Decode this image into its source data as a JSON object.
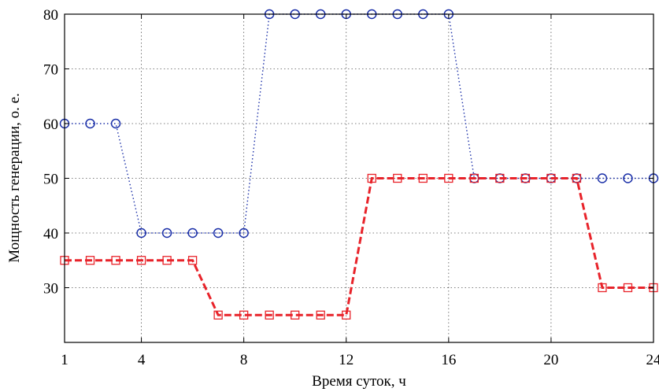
{
  "chart_data": {
    "type": "line",
    "xlabel": "Время суток, ч",
    "ylabel": "Мощность генерации, о. е.",
    "xlim": [
      1,
      24
    ],
    "ylim": [
      20,
      80
    ],
    "xticks": [
      1,
      4,
      8,
      12,
      16,
      20,
      24
    ],
    "yticks": [
      30,
      40,
      50,
      60,
      70,
      80
    ],
    "grid": true,
    "x": [
      1,
      2,
      3,
      4,
      5,
      6,
      7,
      8,
      9,
      10,
      11,
      12,
      13,
      14,
      15,
      16,
      17,
      18,
      19,
      20,
      21,
      22,
      23,
      24
    ],
    "series": [
      {
        "values": [
          60,
          60,
          60,
          40,
          40,
          40,
          40,
          40,
          80,
          80,
          80,
          80,
          80,
          80,
          80,
          80,
          50,
          50,
          50,
          50,
          50,
          50,
          50,
          50
        ],
        "color": "#1a2fa8",
        "line_style": "dotted",
        "marker": "circle"
      },
      {
        "values": [
          35,
          35,
          35,
          35,
          35,
          35,
          25,
          25,
          25,
          25,
          25,
          25,
          50,
          50,
          50,
          50,
          50,
          50,
          50,
          50,
          50,
          30,
          30,
          30
        ],
        "color": "#e8232a",
        "line_style": "dashed",
        "marker": "square"
      }
    ]
  }
}
